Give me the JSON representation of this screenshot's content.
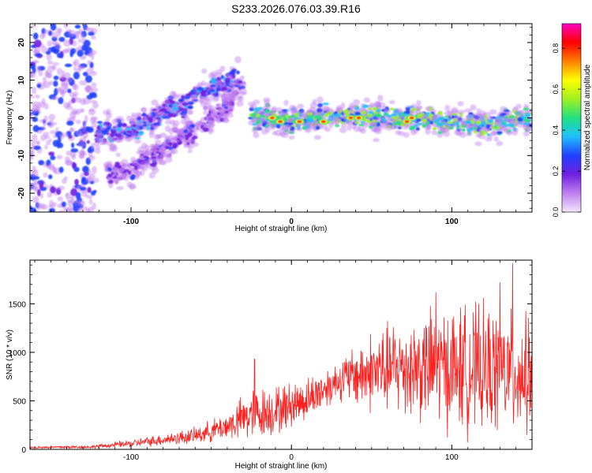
{
  "title": "S233.2026.076.03.39.R16",
  "colors": {
    "axis": "#000000",
    "snr_line": "#ff2020",
    "spectrogram_palette": [
      "#f2e6fa",
      "#c080f0",
      "#7020e0",
      "#2040ff",
      "#20c0ff",
      "#20e080",
      "#a0f020",
      "#ffff00",
      "#ff8000",
      "#ff0000",
      "#ff00c0"
    ]
  },
  "chart_data": [
    {
      "type": "heatmap",
      "name": "spectrogram",
      "xlabel": "Height of straight line (km)",
      "ylabel": "Frequency (Hz)",
      "xlim": [
        -163,
        150
      ],
      "ylim": [
        -25,
        25
      ],
      "xticks": [
        "-100",
        "0",
        "100"
      ],
      "xtick_values": [
        -100,
        0,
        100
      ],
      "yticks": [
        "20",
        "10",
        "0",
        "-10",
        "-20"
      ],
      "ytick_values": [
        20,
        10,
        0,
        -10,
        -20
      ],
      "features": [
        {
          "name": "noise-band",
          "x_range": [
            -163,
            -122
          ],
          "f_range": [
            -25,
            25
          ],
          "amplitude": 0.15
        },
        {
          "name": "upper-rising-branch",
          "points": [
            [
              -122,
              -4
            ],
            [
              -100,
              -3
            ],
            [
              -80,
              1
            ],
            [
              -60,
              6
            ],
            [
              -45,
              9
            ],
            [
              -33,
              11
            ]
          ],
          "amplitude": 0.25
        },
        {
          "name": "lower-rising-branch",
          "points": [
            [
              -115,
              -15
            ],
            [
              -100,
              -14
            ],
            [
              -80,
              -8
            ],
            [
              -60,
              -3
            ],
            [
              -40,
              3
            ],
            [
              -30,
              9
            ]
          ],
          "amplitude": 0.15
        },
        {
          "name": "main-band",
          "points": [
            [
              -25,
              0
            ],
            [
              0,
              -1
            ],
            [
              20,
              0
            ],
            [
              40,
              0.5
            ],
            [
              60,
              0
            ],
            [
              80,
              0
            ],
            [
              100,
              -1
            ],
            [
              120,
              -2
            ],
            [
              140,
              0
            ],
            [
              150,
              -1
            ]
          ],
          "amplitude": 0.45
        },
        {
          "name": "hot-spots",
          "points": [
            [
              -12,
              0
            ],
            [
              -7,
              -1
            ],
            [
              5,
              -1
            ],
            [
              20,
              -1
            ],
            [
              37,
              0
            ],
            [
              42,
              0
            ],
            [
              72,
              -1
            ],
            [
              75,
              0
            ]
          ],
          "amplitude": 0.85
        }
      ],
      "colorbar": {
        "label": "Normalized spectral amplitude",
        "range": [
          0,
          0.92
        ],
        "ticks": [
          "0.0",
          "0.2",
          "0.4",
          "0.6",
          "0.8"
        ],
        "tick_values": [
          0.0,
          0.2,
          0.4,
          0.6,
          0.8
        ]
      }
    },
    {
      "type": "line",
      "name": "snr",
      "xlabel": "Height of straight line (km)",
      "ylabel": "SNR (10 * v/v)",
      "xlim": [
        -163,
        150
      ],
      "ylim": [
        0,
        1950
      ],
      "xticks": [
        "-100",
        "0",
        "100"
      ],
      "xtick_values": [
        -100,
        0,
        100
      ],
      "yticks": [
        "0",
        "500",
        "1000",
        "1500"
      ],
      "ytick_values": [
        0,
        500,
        1000,
        1500
      ],
      "envelope": [
        {
          "x": -163,
          "mean": 20,
          "amp": 15
        },
        {
          "x": -125,
          "mean": 25,
          "amp": 20
        },
        {
          "x": -100,
          "mean": 60,
          "amp": 45
        },
        {
          "x": -60,
          "mean": 140,
          "amp": 100
        },
        {
          "x": -40,
          "mean": 240,
          "amp": 170
        },
        {
          "x": -25,
          "mean": 360,
          "amp": 330
        },
        {
          "x": -10,
          "mean": 400,
          "amp": 300
        },
        {
          "x": 10,
          "mean": 520,
          "amp": 260
        },
        {
          "x": 30,
          "mean": 720,
          "amp": 250
        },
        {
          "x": 50,
          "mean": 800,
          "amp": 500
        },
        {
          "x": 70,
          "mean": 850,
          "amp": 600
        },
        {
          "x": 90,
          "mean": 850,
          "amp": 720
        },
        {
          "x": 110,
          "mean": 830,
          "amp": 780
        },
        {
          "x": 130,
          "mean": 800,
          "amp": 760
        },
        {
          "x": 150,
          "mean": 760,
          "amp": 700
        }
      ],
      "peaks": [
        {
          "x": -23,
          "y": 930
        },
        {
          "x": 90,
          "y": 1620
        },
        {
          "x": 138,
          "y": 1920
        },
        {
          "x": 130,
          "y": 1720
        }
      ]
    }
  ]
}
